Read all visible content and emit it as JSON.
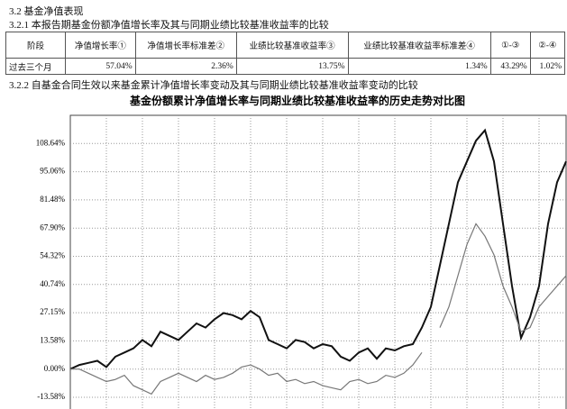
{
  "header": {
    "section": "3.2 基金净值表现",
    "subsection": "3.2.1 本报告期基金份额净值增长率及其与同期业绩比较基准收益率的比较"
  },
  "table": {
    "columns": [
      "阶段",
      "净值增长率①",
      "净值增长率标准差②",
      "业绩比较基准收益率③",
      "业绩比较基准收益率标准差④",
      "①-③",
      "②-④"
    ],
    "rows": [
      [
        "过去三个月",
        "57.04%",
        "2.36%",
        "13.75%",
        "1.34%",
        "43.29%",
        "1.02%"
      ]
    ]
  },
  "chart_heading": "3.2.2 自基金合同生效以来基金累计净值增长率变动及其与同期业绩比较基准收益率变动的比较",
  "chart_data": {
    "type": "line",
    "title": "基金份额累计净值增长率与同期业绩比较基准收益率的历史走势对比图",
    "ylim": [
      -13.58,
      122.22
    ],
    "yticks": [
      {
        "value": -13.58,
        "label": "-13.58%"
      },
      {
        "value": 0,
        "label": "0.00%"
      },
      {
        "value": 13.58,
        "label": "13.58%"
      },
      {
        "value": 27.15,
        "label": "27.15%"
      },
      {
        "value": 40.74,
        "label": "40.74%"
      },
      {
        "value": 54.32,
        "label": "54.32%"
      },
      {
        "value": 67.9,
        "label": "67.90%"
      },
      {
        "value": 81.48,
        "label": "81.48%"
      },
      {
        "value": 95.06,
        "label": "95.06%"
      },
      {
        "value": 108.64,
        "label": "108.64%"
      }
    ],
    "grid": true,
    "series": [
      {
        "color": "#111111",
        "values": [
          0,
          2,
          3,
          4,
          1,
          6,
          8,
          10,
          14,
          11,
          18,
          16,
          14,
          18,
          22,
          20,
          24,
          27,
          26,
          24,
          28,
          25,
          14,
          12,
          10,
          14,
          13,
          10,
          12,
          11,
          6,
          4,
          8,
          10,
          5,
          10,
          9,
          11,
          12,
          20,
          30,
          50,
          70,
          90,
          100,
          110,
          115,
          100,
          70,
          40,
          15,
          25,
          40,
          70,
          90,
          100
        ]
      },
      {
        "color": "#777777",
        "values": [
          0,
          0,
          -2,
          -4,
          -6,
          -5,
          -3,
          -8,
          -10,
          -12,
          -6,
          -4,
          -2,
          -4,
          -6,
          -3,
          -5,
          -4,
          -2,
          1,
          2,
          0,
          -3,
          -2,
          -6,
          -5,
          -7,
          -6,
          -8,
          -9,
          -10,
          -6,
          -5,
          -7,
          -6,
          -3,
          -4,
          -2,
          2,
          8,
          null,
          20,
          30,
          45,
          60,
          70,
          64,
          55,
          40,
          30,
          18,
          20,
          30,
          35,
          40,
          45
        ]
      }
    ]
  }
}
